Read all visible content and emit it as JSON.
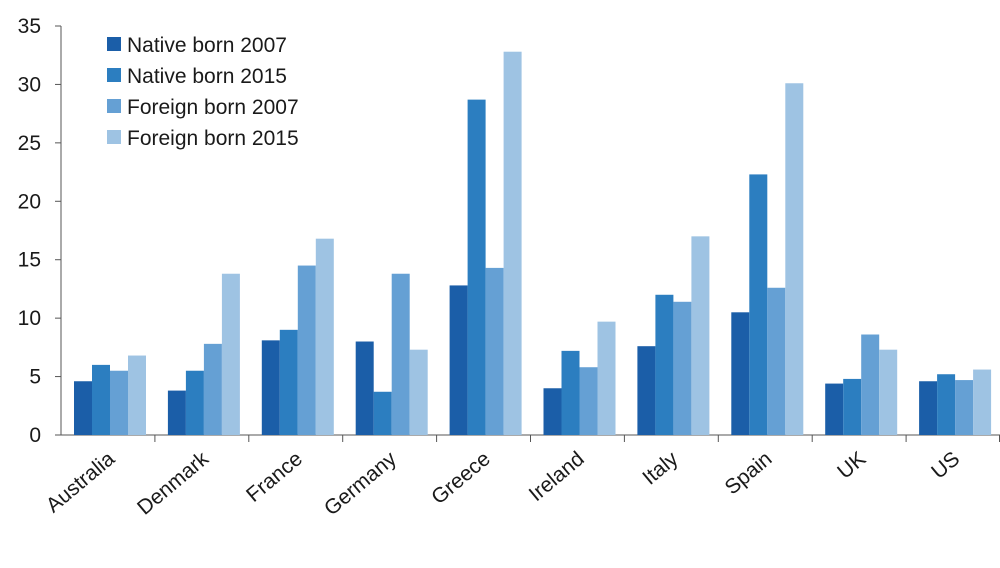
{
  "chart_data": {
    "type": "bar",
    "title": "",
    "xlabel": "",
    "ylabel": "",
    "ylim": [
      0,
      35
    ],
    "yticks": [
      0,
      5,
      10,
      15,
      20,
      25,
      30,
      35
    ],
    "grid": false,
    "legend_position": "top-left",
    "categories": [
      "Australia",
      "Denmark",
      "France",
      "Germany",
      "Greece",
      "Ireland",
      "Italy",
      "Spain",
      "UK",
      "US"
    ],
    "series": [
      {
        "name": "Native born 2007",
        "color": "#1b5ea8",
        "values": [
          4.6,
          3.8,
          8.1,
          8.0,
          12.8,
          4.0,
          7.6,
          10.5,
          4.4,
          4.6
        ]
      },
      {
        "name": "Native born 2015",
        "color": "#2c7ec0",
        "values": [
          6.0,
          5.5,
          9.0,
          3.7,
          28.7,
          7.2,
          12.0,
          22.3,
          4.8,
          5.2
        ]
      },
      {
        "name": "Foreign born 2007",
        "color": "#65a0d4",
        "values": [
          5.5,
          7.8,
          14.5,
          13.8,
          14.3,
          5.8,
          11.4,
          12.6,
          8.6,
          4.7
        ]
      },
      {
        "name": "Foreign born 2015",
        "color": "#9ec3e3",
        "values": [
          6.8,
          13.8,
          16.8,
          7.3,
          32.8,
          9.7,
          17.0,
          30.1,
          7.3,
          5.6
        ]
      }
    ]
  }
}
